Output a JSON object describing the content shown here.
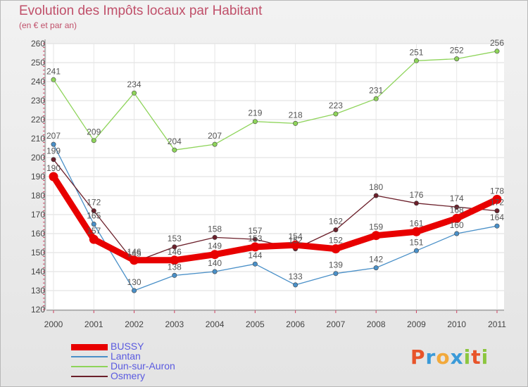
{
  "header": {
    "title": "Evolution des Impôts locaux par Habitant",
    "subtitle": "(en € et par an)"
  },
  "logo": {
    "text": "Proxiti",
    "colors": [
      "#e8542a",
      "#3a9ad8",
      "#f2a93b",
      "#3a9ad8",
      "#8cc63f",
      "#e8542a",
      "#8cc63f"
    ]
  },
  "chart_data": {
    "type": "line",
    "title": "Evolution des Impôts locaux par Habitant",
    "subtitle": "(en € et par an)",
    "xlabel": "",
    "ylabel": "",
    "categories": [
      "2000",
      "2001",
      "2002",
      "2003",
      "2004",
      "2005",
      "2006",
      "2007",
      "2008",
      "2009",
      "2010",
      "2011"
    ],
    "ylim": [
      120,
      260
    ],
    "yticks": [
      120,
      130,
      140,
      150,
      160,
      170,
      180,
      190,
      200,
      210,
      220,
      230,
      240,
      250,
      260
    ],
    "grid": true,
    "legend_position": "bottom-left",
    "series": [
      {
        "name": "BUSSY",
        "color": "#e80000",
        "values": [
          190,
          157,
          146,
          146,
          149,
          153,
          154,
          152,
          159,
          161,
          168,
          178
        ]
      },
      {
        "name": "Lantan",
        "color": "#4a90c8",
        "values": [
          207,
          165,
          130,
          138,
          140,
          144,
          133,
          139,
          142,
          151,
          160,
          164
        ]
      },
      {
        "name": "Dun-sur-Auron",
        "color": "#8ed45a",
        "values": [
          241,
          209,
          234,
          204,
          207,
          219,
          218,
          223,
          231,
          251,
          252,
          256
        ]
      },
      {
        "name": "Osmery",
        "color": "#6b1f2a",
        "values": [
          199,
          172,
          145,
          153,
          158,
          157,
          152,
          162,
          180,
          176,
          174,
          172
        ]
      }
    ]
  }
}
